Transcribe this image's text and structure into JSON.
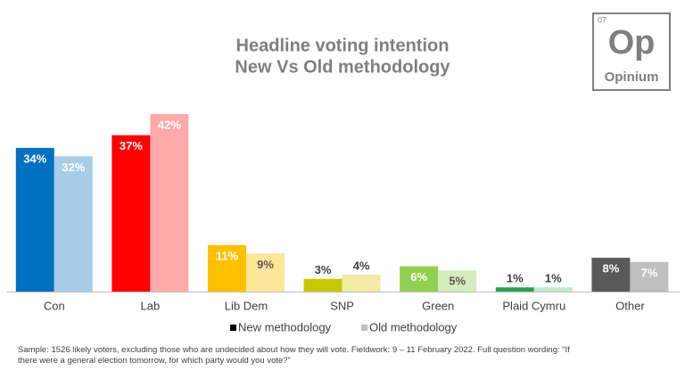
{
  "chart_data": {
    "type": "bar",
    "title": "Headline voting intention",
    "subtitle": "New Vs Old methodology",
    "categories": [
      "Con",
      "Lab",
      "Lib Dem",
      "SNP",
      "Green",
      "Plaid Cymru",
      "Other"
    ],
    "series": [
      {
        "name": "New methodology",
        "color": "#000000",
        "bar_colors": [
          "#0070c0",
          "#ff0000",
          "#ffc000",
          "#c8c800",
          "#92d050",
          "#2e9e55",
          "#595959"
        ],
        "label_colors": [
          "#ffffff",
          "#ffffff",
          "#ffffff",
          "#404040",
          "#ffffff",
          "#404040",
          "#ffffff"
        ],
        "values": [
          34,
          37,
          11,
          3,
          6,
          1,
          8
        ],
        "value_labels": [
          "34%",
          "37%",
          "11%",
          "3%",
          "6%",
          "1%",
          "8%"
        ]
      },
      {
        "name": "Old methodology",
        "color": "#bfbfbf",
        "bar_colors": [
          "#a9cce8",
          "#ffaaaa",
          "#ffe699",
          "#f2eca6",
          "#d4edbc",
          "#c5e8d0",
          "#bfbfbf"
        ],
        "label_colors": [
          "#ffffff",
          "#ffffff",
          "#595959",
          "#404040",
          "#595959",
          "#404040",
          "#ffffff"
        ],
        "values": [
          32,
          42,
          9,
          4,
          5,
          1,
          7
        ],
        "value_labels": [
          "32%",
          "42%",
          "9%",
          "4%",
          "5%",
          "1%",
          "7%"
        ]
      }
    ],
    "footnote": "Sample: 1526 likely voters, excluding those who are undecided about how they will vote. Fieldwork: 9 – 11 February 2022. Full question wording: “If there were a general election tomorrow, for which party would you vote?”"
  },
  "logo": {
    "number": "07",
    "symbol": "Op",
    "name": "Opinium"
  }
}
